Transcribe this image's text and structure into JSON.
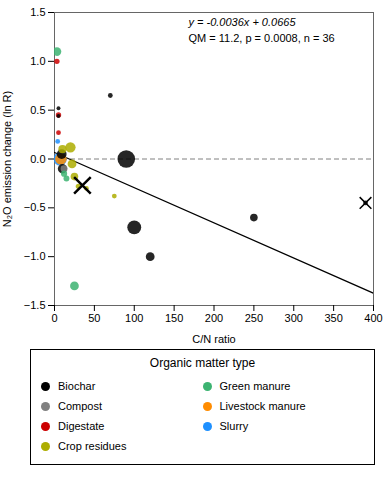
{
  "chart_data": {
    "type": "scatter",
    "annotations": [
      "y = -0.0036x + 0.0665",
      "QM = 11.2, p = 0.0008, n = 36"
    ],
    "xlabel": "C/N ratio",
    "ylabel": "N₂O emission change (ln R)",
    "xlim": [
      0,
      400
    ],
    "ylim": [
      -1.5,
      1.5
    ],
    "xticks": [
      0,
      50,
      100,
      150,
      200,
      250,
      300,
      350,
      400
    ],
    "yticks": [
      {
        "value": -1.5,
        "label": "−1.5"
      },
      {
        "value": -1.0,
        "label": "−1.0"
      },
      {
        "value": -0.5,
        "label": "−0.5"
      },
      {
        "value": 0.0,
        "label": "0.0"
      },
      {
        "value": 0.5,
        "label": "0.5"
      },
      {
        "value": 1.0,
        "label": "1.0"
      },
      {
        "value": 1.5,
        "label": "1.5"
      }
    ],
    "grid": false,
    "reference_line": {
      "y": 0.0,
      "color": "gray",
      "line_style": "dashed"
    },
    "regression_line": {
      "x": [
        0,
        400
      ],
      "y": [
        0.0665,
        -1.3735
      ],
      "color": "#000000"
    },
    "points": [
      {
        "x": 3,
        "y": 1.1,
        "size": 40,
        "color": "#3cb371"
      },
      {
        "x": 3,
        "y": 1.0,
        "size": 15,
        "color": "#cc0000"
      },
      {
        "x": 5,
        "y": 0.45,
        "size": 15,
        "color": "#cc0000"
      },
      {
        "x": 5,
        "y": 0.27,
        "size": 12,
        "color": "#cc0000"
      },
      {
        "x": 4,
        "y": 0.18,
        "size": 12,
        "color": "#1e90ff"
      },
      {
        "x": 5,
        "y": 0.44,
        "size": 8,
        "color": "#000000"
      },
      {
        "x": 5,
        "y": 0.52,
        "size": 8,
        "color": "#000000"
      },
      {
        "x": 7,
        "y": 0.0,
        "size": 90,
        "color": "#1e90ff"
      },
      {
        "x": 8,
        "y": 0.0,
        "size": 70,
        "color": "#ff8c00"
      },
      {
        "x": 9,
        "y": 0.05,
        "size": 50,
        "color": "#000000"
      },
      {
        "x": 10,
        "y": -0.1,
        "size": 45,
        "color": "#000000"
      },
      {
        "x": 10,
        "y": 0.1,
        "size": 35,
        "color": "#adad00"
      },
      {
        "x": 12,
        "y": -0.1,
        "size": 25,
        "color": "#808080"
      },
      {
        "x": 12,
        "y": -0.15,
        "size": 20,
        "color": "#3cb371"
      },
      {
        "x": 15,
        "y": -0.2,
        "size": 18,
        "color": "#3cb371"
      },
      {
        "x": 20,
        "y": 0.12,
        "size": 55,
        "color": "#adad00"
      },
      {
        "x": 22,
        "y": -0.05,
        "size": 40,
        "color": "#adad00"
      },
      {
        "x": 25,
        "y": -0.18,
        "size": 30,
        "color": "#adad00"
      },
      {
        "x": 30,
        "y": -0.28,
        "size": 15,
        "color": "#adad00"
      },
      {
        "x": 40,
        "y": -0.3,
        "size": 12,
        "color": "#adad00"
      },
      {
        "x": 70,
        "y": 0.65,
        "size": 12,
        "color": "#000000"
      },
      {
        "x": 75,
        "y": -0.38,
        "size": 12,
        "color": "#adad00"
      },
      {
        "x": 90,
        "y": 0.0,
        "size": 160,
        "color": "#000000"
      },
      {
        "x": 100,
        "y": -0.7,
        "size": 100,
        "color": "#000000"
      },
      {
        "x": 120,
        "y": -1.0,
        "size": 40,
        "color": "#000000"
      },
      {
        "x": 250,
        "y": -0.6,
        "size": 30,
        "color": "#000000"
      },
      {
        "x": 390,
        "y": -0.45,
        "size": 12,
        "color": "#000000"
      },
      {
        "x": 25,
        "y": -1.3,
        "size": 40,
        "color": "#3cb371"
      }
    ],
    "cross_points": [
      {
        "x": 35,
        "y": -0.27,
        "size": 120,
        "color": "#000000",
        "marker": "x"
      },
      {
        "x": 390,
        "y": -0.45,
        "size": 60,
        "color": "#000000",
        "marker": "x"
      }
    ],
    "legend_title": "Organic matter type",
    "legend_items": [
      {
        "name": "Biochar",
        "color": "#000000"
      },
      {
        "name": "Compost",
        "color": "#808080"
      },
      {
        "name": "Digestate",
        "color": "#cc0000"
      },
      {
        "name": "Crop residues",
        "color": "#adad00"
      },
      {
        "name": "Green manure",
        "color": "#3cb371"
      },
      {
        "name": "Livestock manure",
        "color": "#ff8c00"
      },
      {
        "name": "Slurry",
        "color": "#1e90ff"
      }
    ]
  }
}
